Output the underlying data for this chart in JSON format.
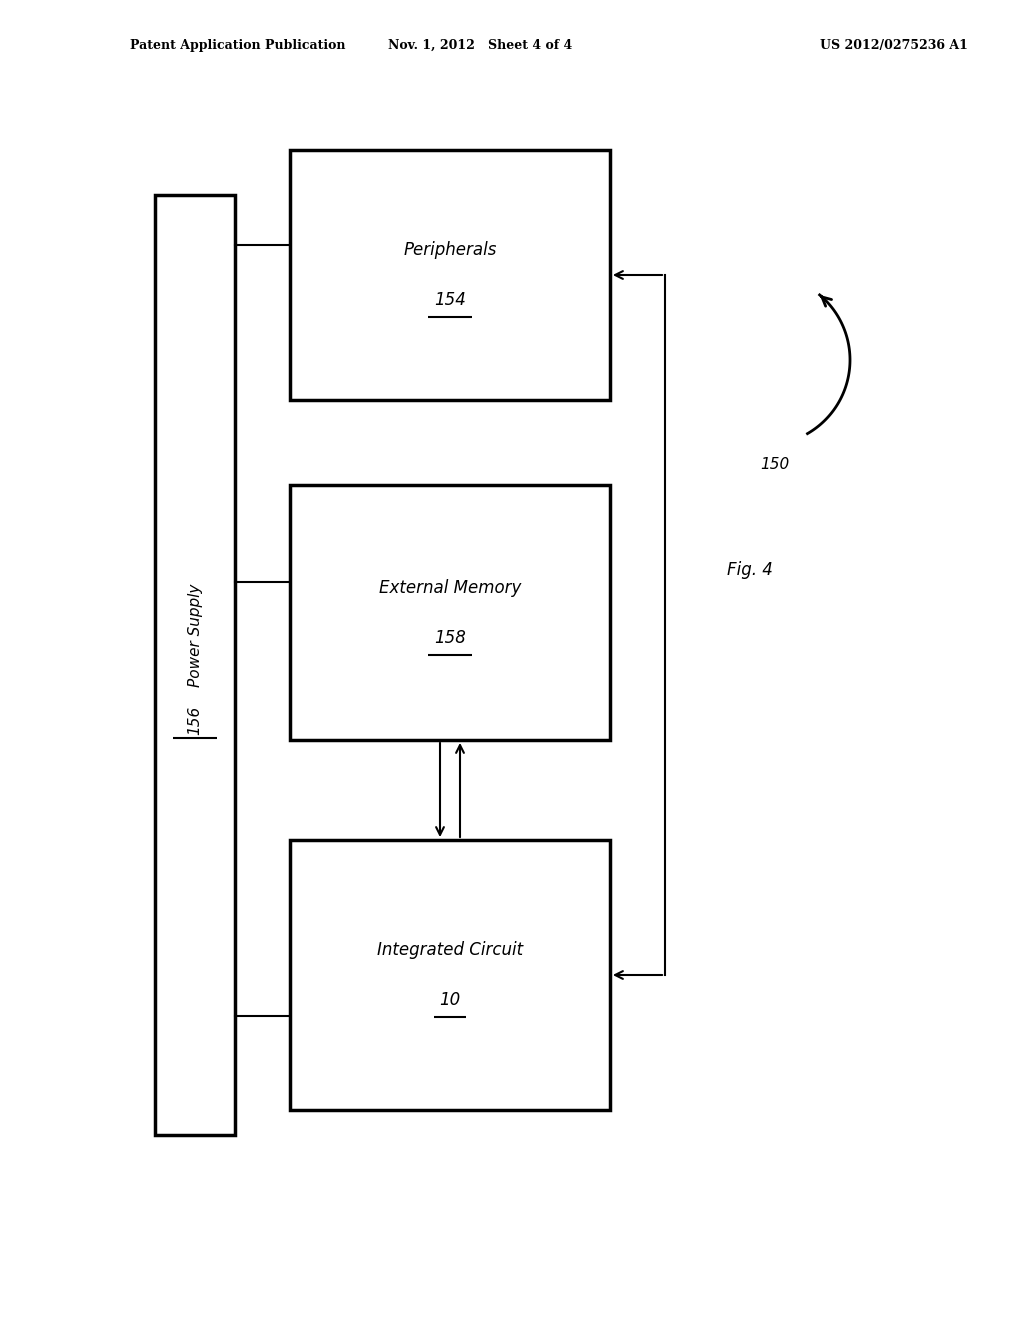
{
  "bg_color": "#ffffff",
  "header_left": "Patent Application Publication",
  "header_mid": "Nov. 1, 2012   Sheet 4 of 4",
  "header_right": "US 2012/0275236 A1",
  "fig_label": "Fig. 4",
  "power_supply_label": "Power Supply",
  "power_supply_num": "156",
  "peripherals_label": "Peripherals",
  "peripherals_num": "154",
  "ext_memory_label": "External Memory",
  "ext_memory_num": "158",
  "ic_label": "Integrated Circuit",
  "ic_num": "10",
  "system_label": "150"
}
